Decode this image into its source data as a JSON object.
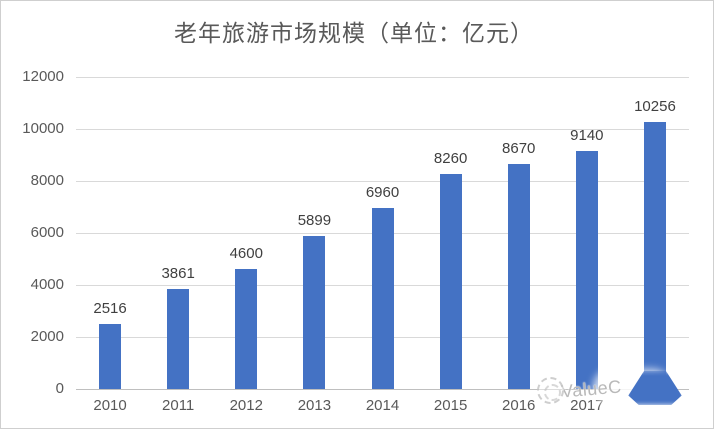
{
  "chart_data": {
    "type": "bar",
    "title": "老年旅游市场规模（单位：亿元）",
    "categories": [
      "2010",
      "2011",
      "2012",
      "2013",
      "2014",
      "2015",
      "2016",
      "2017",
      ""
    ],
    "values": [
      2516,
      3861,
      4600,
      5899,
      6960,
      8260,
      8670,
      9140,
      10256
    ],
    "xlabel": "",
    "ylabel": "",
    "ylim": [
      0,
      12000
    ],
    "yticks": [
      0,
      2000,
      4000,
      6000,
      8000,
      10000,
      12000
    ],
    "grid": true,
    "legend": "none",
    "bar_color": "#4472c4",
    "gridline_color": "#d9d9d9",
    "axisline_color": "#bfbfbf",
    "title_color": "#595959",
    "tick_label_color": "#595959",
    "data_label_color": "#404040",
    "note_last_category_label_hidden_by_watermark": true
  },
  "watermark": {
    "text": "ValueC"
  }
}
